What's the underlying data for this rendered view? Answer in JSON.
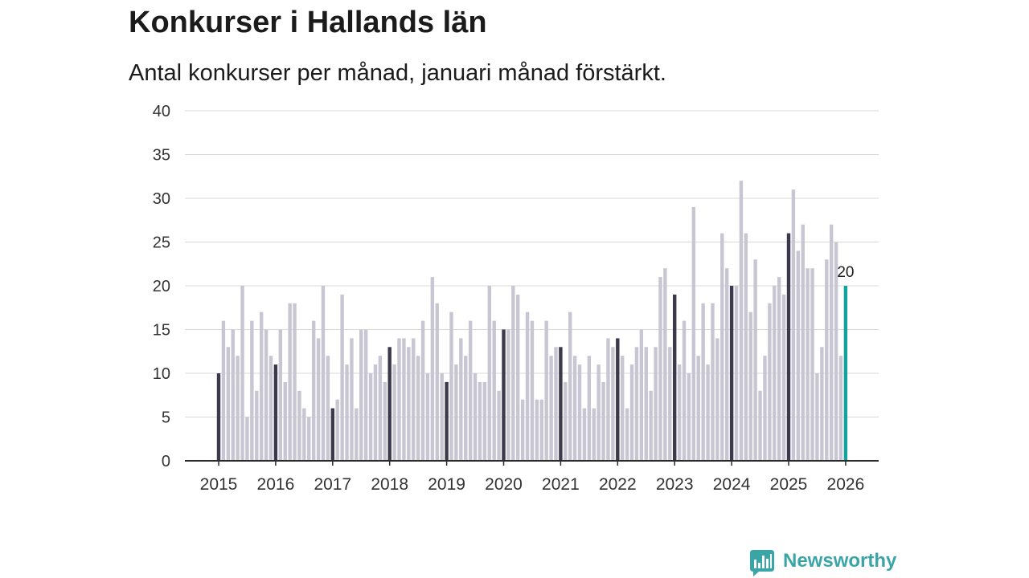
{
  "brand": {
    "name": "Newsworthy",
    "icon": "newsworthy-logo-icon"
  },
  "colors": {
    "text": "#1b1b1b",
    "bar": "#c7c6d2",
    "january_bar": "#3b394b",
    "latest_bar": "#13a39a",
    "grid": "#d9d9d9",
    "axis": "#2a2a2a",
    "brand": "#3aa5a6"
  },
  "chart_data": {
    "type": "bar",
    "title": "Konkurser i Hallands län",
    "subtitle": "Antal konkurser per månad, januari månad förstärkt.",
    "xlabel": "",
    "ylabel": "",
    "ylim": [
      0,
      40
    ],
    "yticks": [
      0,
      5,
      10,
      15,
      20,
      25,
      30,
      35,
      40
    ],
    "grid": true,
    "years": [
      {
        "label": "2015",
        "values": [
          10,
          16,
          13,
          15,
          12,
          20,
          5,
          16,
          8,
          17,
          15,
          12
        ]
      },
      {
        "label": "2016",
        "values": [
          11,
          15,
          9,
          18,
          18,
          8,
          6,
          5,
          16,
          14,
          20,
          12
        ]
      },
      {
        "label": "2017",
        "values": [
          6,
          7,
          19,
          11,
          14,
          6,
          15,
          15,
          10,
          11,
          12,
          9
        ]
      },
      {
        "label": "2018",
        "values": [
          13,
          11,
          14,
          14,
          13,
          14,
          12,
          16,
          10,
          21,
          18,
          10
        ]
      },
      {
        "label": "2019",
        "values": [
          9,
          17,
          11,
          14,
          12,
          16,
          10,
          9,
          9,
          20,
          16,
          8
        ]
      },
      {
        "label": "2020",
        "values": [
          15,
          15,
          20,
          19,
          7,
          17,
          16,
          7,
          7,
          16,
          12,
          13
        ]
      },
      {
        "label": "2021",
        "values": [
          13,
          9,
          17,
          12,
          11,
          6,
          12,
          6,
          11,
          9,
          14,
          13
        ]
      },
      {
        "label": "2022",
        "values": [
          14,
          12,
          6,
          11,
          13,
          15,
          13,
          8,
          13,
          21,
          22,
          13
        ]
      },
      {
        "label": "2023",
        "values": [
          19,
          11,
          16,
          10,
          29,
          12,
          18,
          11,
          18,
          14,
          26,
          22
        ]
      },
      {
        "label": "2024",
        "values": [
          20,
          20,
          32,
          26,
          17,
          23,
          8,
          12,
          18,
          20,
          21,
          19
        ]
      },
      {
        "label": "2025",
        "values": [
          26,
          31,
          24,
          27,
          22,
          22,
          10,
          13,
          23,
          27,
          25,
          12
        ]
      },
      {
        "label": "2026",
        "values": [
          20
        ]
      }
    ],
    "latest_label": "20"
  }
}
